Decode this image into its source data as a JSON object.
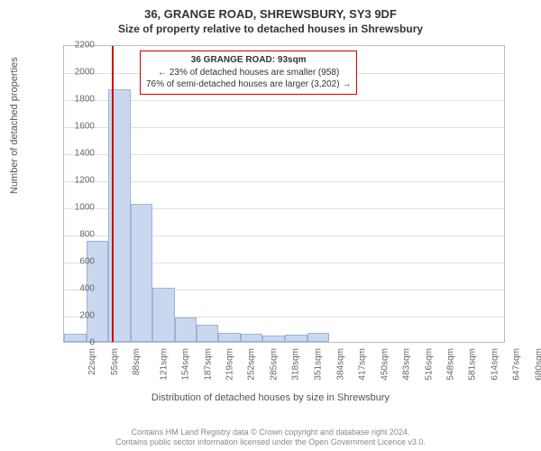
{
  "header": {
    "title_main": "36, GRANGE ROAD, SHREWSBURY, SY3 9DF",
    "title_sub": "Size of property relative to detached houses in Shrewsbury"
  },
  "chart": {
    "type": "histogram",
    "y_axis_title": "Number of detached properties",
    "x_axis_title": "Distribution of detached houses by size in Shrewsbury",
    "ylim": [
      0,
      2200
    ],
    "ytick_step": 200,
    "yticks": [
      0,
      200,
      400,
      600,
      800,
      1000,
      1200,
      1400,
      1600,
      1800,
      2000,
      2200
    ],
    "xticks": [
      "22sqm",
      "55sqm",
      "88sqm",
      "121sqm",
      "154sqm",
      "187sqm",
      "219sqm",
      "252sqm",
      "285sqm",
      "318sqm",
      "351sqm",
      "384sqm",
      "417sqm",
      "450sqm",
      "483sqm",
      "516sqm",
      "548sqm",
      "581sqm",
      "614sqm",
      "647sqm",
      "680sqm"
    ],
    "bars": [
      {
        "x_center_sqm": 38.5,
        "value": 60
      },
      {
        "x_center_sqm": 71.5,
        "value": 750
      },
      {
        "x_center_sqm": 104.5,
        "value": 1870
      },
      {
        "x_center_sqm": 137.5,
        "value": 1020
      },
      {
        "x_center_sqm": 170.5,
        "value": 400
      },
      {
        "x_center_sqm": 203,
        "value": 180
      },
      {
        "x_center_sqm": 235.5,
        "value": 130
      },
      {
        "x_center_sqm": 268.5,
        "value": 70
      },
      {
        "x_center_sqm": 301.5,
        "value": 60
      },
      {
        "x_center_sqm": 334.5,
        "value": 50
      },
      {
        "x_center_sqm": 367.5,
        "value": 55
      },
      {
        "x_center_sqm": 400.5,
        "value": 70
      }
    ],
    "bar_color": "#c9d8ef",
    "bar_border_color": "#9cb4d8",
    "grid_color": "#e0e0e0",
    "background_color": "#ffffff",
    "plot_border_color": "#bbbbbb",
    "marker": {
      "value_sqm": 93,
      "color": "#d00000"
    },
    "xlim_sqm": [
      22,
      680
    ],
    "bar_width_sqm": 33
  },
  "annotation": {
    "line1": "36 GRANGE ROAD: 93sqm",
    "line2": "← 23% of detached houses are smaller (958)",
    "line3": "76% of semi-detached houses are larger (3,202) →",
    "border_color": "#d00000",
    "fontsize": 10
  },
  "footer": {
    "line1": "Contains HM Land Registry data © Crown copyright and database right 2024.",
    "line2": "Contains public sector information licensed under the Open Government Licence v3.0."
  }
}
